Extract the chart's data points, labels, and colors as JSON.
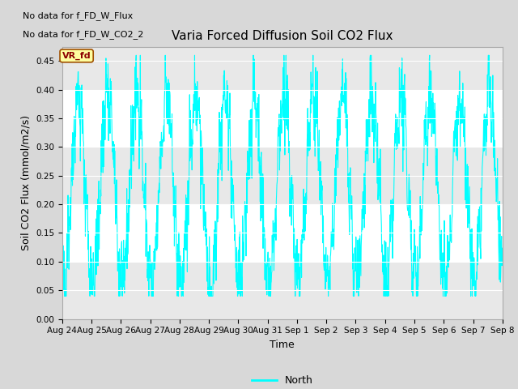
{
  "title": "Varia Forced Diffusion Soil CO2 Flux",
  "xlabel": "Time",
  "ylabel": "Soil CO2 Flux (mmol/m2/s)",
  "ylim": [
    0.0,
    0.475
  ],
  "yticks": [
    0.0,
    0.05,
    0.1,
    0.15,
    0.2,
    0.25,
    0.3,
    0.35,
    0.4,
    0.45
  ],
  "xtick_labels": [
    "Aug 24",
    "Aug 25",
    "Aug 26",
    "Aug 27",
    "Aug 28",
    "Aug 29",
    "Aug 30",
    "Aug 31",
    "Sep 1",
    "Sep 2",
    "Sep 3",
    "Sep 4",
    "Sep 5",
    "Sep 6",
    "Sep 7",
    "Sep 8"
  ],
  "no_data_text1": "No data for f_FD_W_Flux",
  "no_data_text2": "No data for f_FD_W_CO2_2",
  "vr_fd_label": "VR_fd",
  "line_color": "#00FFFF",
  "fig_bg_color": "#d8d8d8",
  "plot_bg_color": "#ffffff",
  "band_color": "#e8e8e8",
  "legend_line_color": "#00FFFF",
  "legend_label": "North",
  "seed": 42,
  "n_points": 1500,
  "end_day": 15
}
